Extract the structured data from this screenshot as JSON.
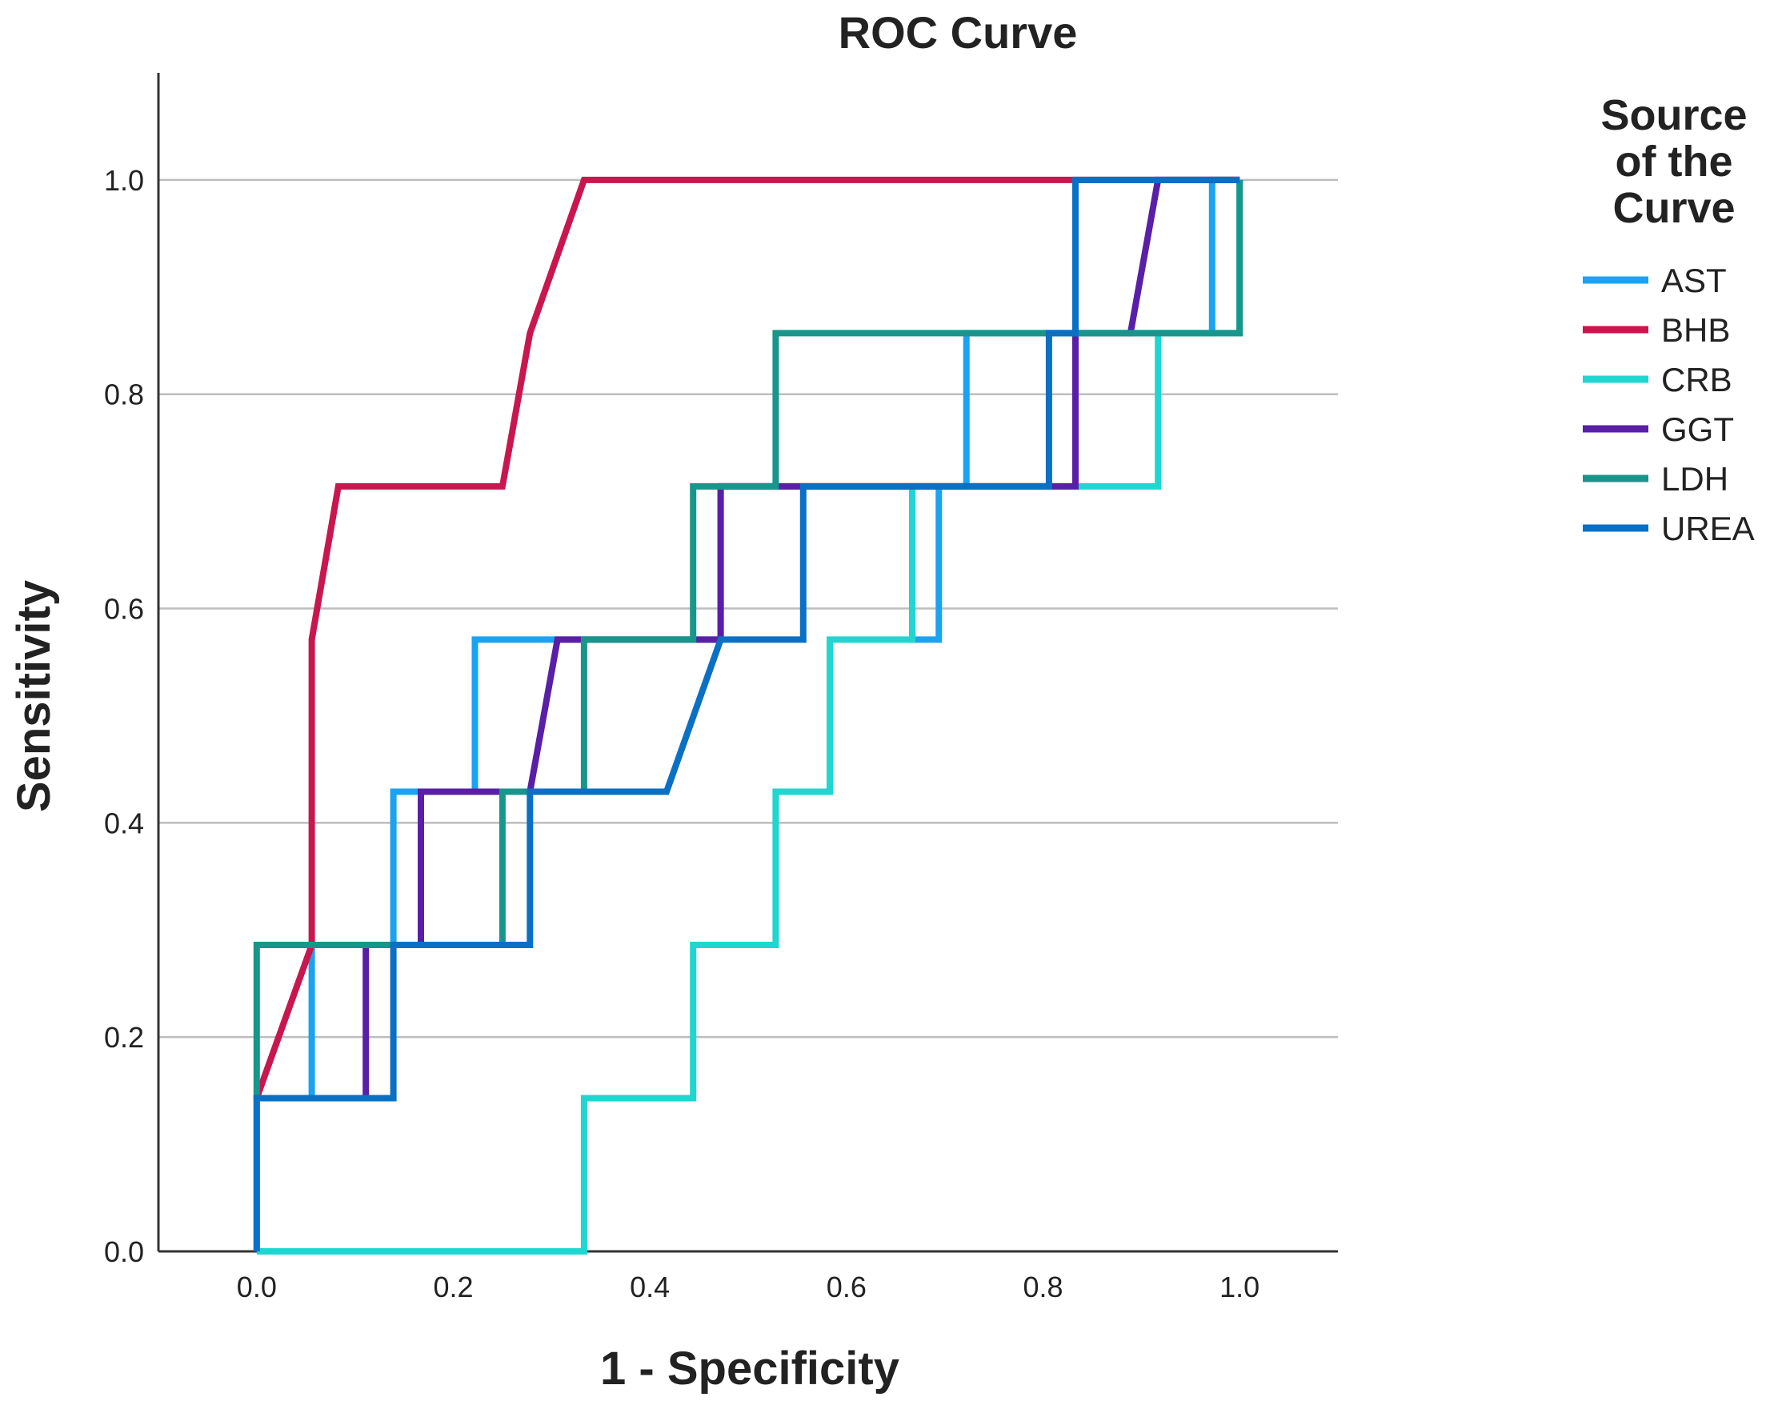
{
  "chart_data": {
    "type": "line",
    "title": "ROC Curve",
    "xlabel": "1 - Specificity",
    "ylabel": "Sensitivity",
    "xlim": [
      -0.1,
      1.1
    ],
    "ylim": [
      0.0,
      1.1
    ],
    "x_ticks": [
      0.0,
      0.2,
      0.4,
      0.6,
      0.8,
      1.0
    ],
    "x_tick_labels": [
      "0.0",
      "0.2",
      "0.4",
      "0.6",
      "0.8",
      "1.0"
    ],
    "y_ticks": [
      0.0,
      0.2,
      0.4,
      0.6,
      0.8,
      1.0
    ],
    "y_tick_labels": [
      "0.0",
      "0.2",
      "0.4",
      "0.6",
      "0.8",
      "1.0"
    ],
    "gridlines": "horizontal",
    "legend": {
      "title_lines": [
        "Source",
        "of the",
        "Curve"
      ],
      "position": "right"
    },
    "series": [
      {
        "name": "AST",
        "color": "#1aa3f0",
        "points": [
          [
            0.0,
            0.0
          ],
          [
            0.0,
            0.143
          ],
          [
            0.056,
            0.143
          ],
          [
            0.056,
            0.286
          ],
          [
            0.139,
            0.286
          ],
          [
            0.139,
            0.429
          ],
          [
            0.222,
            0.429
          ],
          [
            0.222,
            0.571
          ],
          [
            0.472,
            0.571
          ],
          [
            0.472,
            0.714
          ],
          [
            0.694,
            0.714
          ],
          [
            0.694,
            0.571
          ],
          [
            0.667,
            0.571
          ],
          [
            0.667,
            0.714
          ],
          [
            0.722,
            0.714
          ],
          [
            0.722,
            0.857
          ],
          [
            0.972,
            0.857
          ],
          [
            0.972,
            1.0
          ],
          [
            1.0,
            1.0
          ]
        ]
      },
      {
        "name": "BHB",
        "color": "#c8174f",
        "points": [
          [
            0.0,
            0.143
          ],
          [
            0.056,
            0.286
          ],
          [
            0.056,
            0.571
          ],
          [
            0.083,
            0.714
          ],
          [
            0.25,
            0.714
          ],
          [
            0.278,
            0.857
          ],
          [
            0.333,
            1.0
          ],
          [
            1.0,
            1.0
          ]
        ]
      },
      {
        "name": "CRB",
        "color": "#1fd6d0",
        "points": [
          [
            0.0,
            0.0
          ],
          [
            0.333,
            0.0
          ],
          [
            0.333,
            0.143
          ],
          [
            0.444,
            0.143
          ],
          [
            0.444,
            0.286
          ],
          [
            0.528,
            0.286
          ],
          [
            0.528,
            0.429
          ],
          [
            0.583,
            0.429
          ],
          [
            0.583,
            0.571
          ],
          [
            0.667,
            0.571
          ],
          [
            0.667,
            0.714
          ],
          [
            0.917,
            0.714
          ],
          [
            0.917,
            0.857
          ],
          [
            1.0,
            0.857
          ],
          [
            1.0,
            1.0
          ]
        ]
      },
      {
        "name": "GGT",
        "color": "#5a1fa6",
        "points": [
          [
            0.0,
            0.143
          ],
          [
            0.111,
            0.143
          ],
          [
            0.111,
            0.286
          ],
          [
            0.167,
            0.286
          ],
          [
            0.167,
            0.429
          ],
          [
            0.278,
            0.429
          ],
          [
            0.306,
            0.571
          ],
          [
            0.472,
            0.571
          ],
          [
            0.472,
            0.714
          ],
          [
            0.833,
            0.714
          ],
          [
            0.833,
            0.857
          ],
          [
            0.889,
            0.857
          ],
          [
            0.917,
            1.0
          ],
          [
            1.0,
            1.0
          ]
        ]
      },
      {
        "name": "LDH",
        "color": "#17968c",
        "points": [
          [
            0.0,
            0.143
          ],
          [
            0.0,
            0.286
          ],
          [
            0.25,
            0.286
          ],
          [
            0.25,
            0.429
          ],
          [
            0.333,
            0.429
          ],
          [
            0.333,
            0.571
          ],
          [
            0.444,
            0.571
          ],
          [
            0.444,
            0.714
          ],
          [
            0.528,
            0.714
          ],
          [
            0.528,
            0.857
          ],
          [
            1.0,
            0.857
          ],
          [
            1.0,
            1.0
          ]
        ]
      },
      {
        "name": "UREA",
        "color": "#0a70c4",
        "points": [
          [
            0.0,
            0.0
          ],
          [
            0.0,
            0.143
          ],
          [
            0.139,
            0.143
          ],
          [
            0.139,
            0.286
          ],
          [
            0.278,
            0.286
          ],
          [
            0.278,
            0.429
          ],
          [
            0.417,
            0.429
          ],
          [
            0.472,
            0.571
          ],
          [
            0.556,
            0.571
          ],
          [
            0.556,
            0.714
          ],
          [
            0.806,
            0.714
          ],
          [
            0.806,
            0.857
          ],
          [
            0.833,
            0.857
          ],
          [
            0.833,
            1.0
          ],
          [
            1.0,
            1.0
          ]
        ]
      }
    ]
  }
}
